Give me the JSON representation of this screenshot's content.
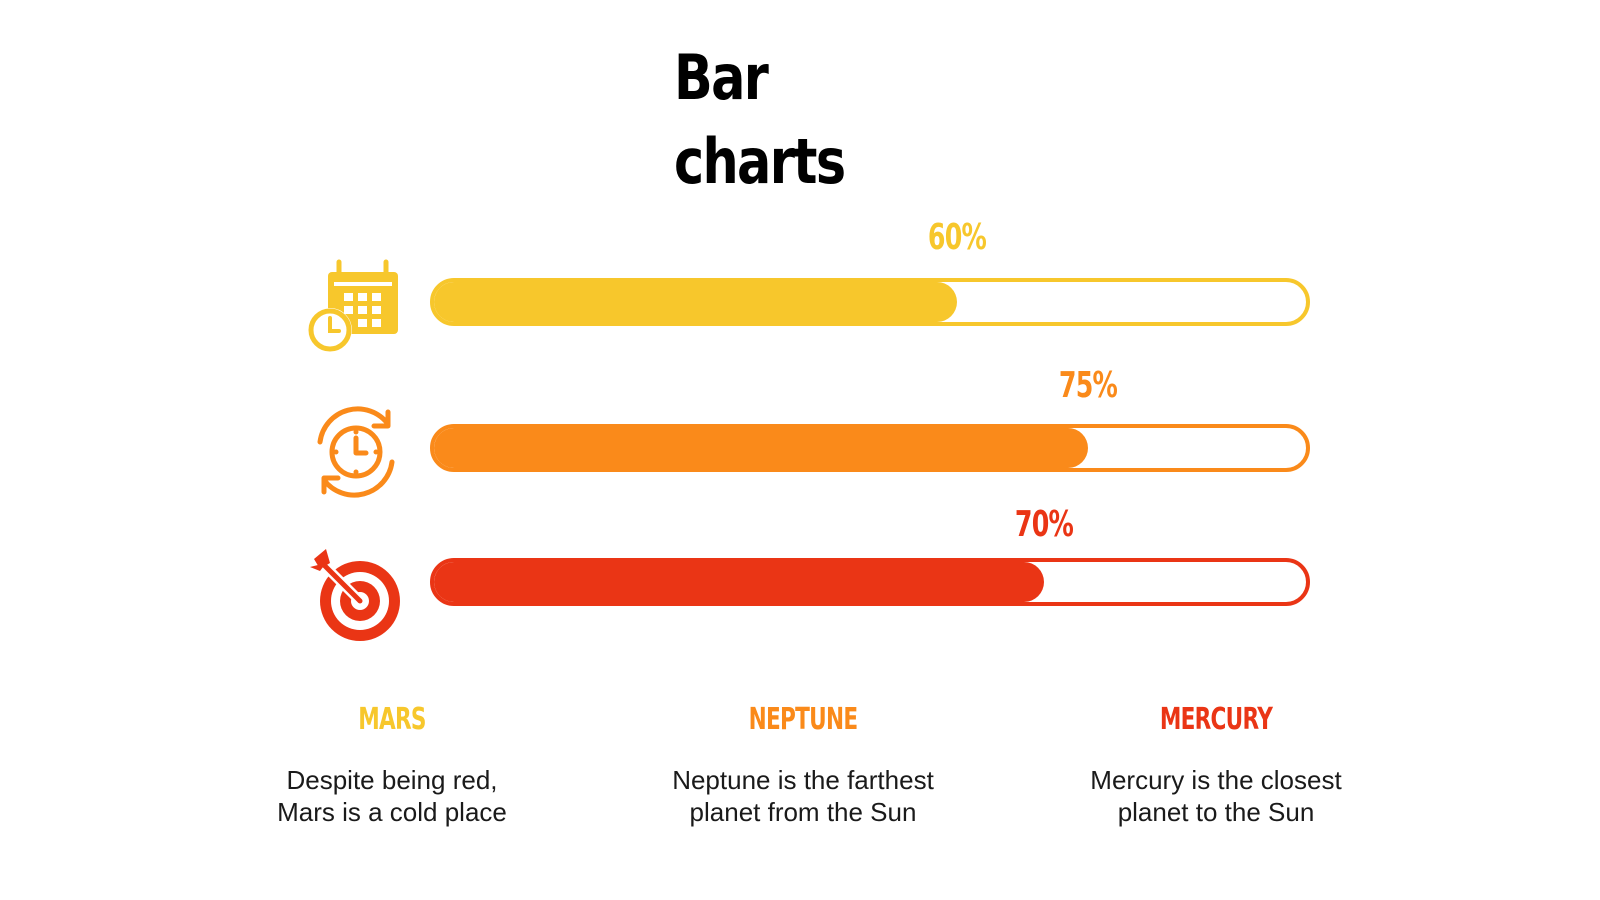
{
  "colors": {
    "yellow": "#F7C72C",
    "orange": "#FA8A1A",
    "red": "#EA3515"
  },
  "chart_data": {
    "type": "bar",
    "orientation": "horizontal",
    "title": "Bar\ncharts",
    "xlim": [
      0,
      100
    ],
    "bars": [
      {
        "value": 60,
        "label": "60%",
        "color": "#F7C72C",
        "icon": "calendar-clock-icon"
      },
      {
        "value": 75,
        "label": "75%",
        "color": "#FA8A1A",
        "icon": "clock-cycle-icon"
      },
      {
        "value": 70,
        "label": "70%",
        "color": "#EA3515",
        "icon": "target-arrow-icon"
      }
    ]
  },
  "columns": [
    {
      "title": "MARS",
      "color": "#F7C72C",
      "desc": "Despite being red,\nMars is a cold place"
    },
    {
      "title": "NEPTUNE",
      "color": "#FA8A1A",
      "desc": "Neptune is the farthest\nplanet from the Sun"
    },
    {
      "title": "MERCURY",
      "color": "#EA3515",
      "desc": "Mercury is the closest\nplanet to the Sun"
    }
  ]
}
